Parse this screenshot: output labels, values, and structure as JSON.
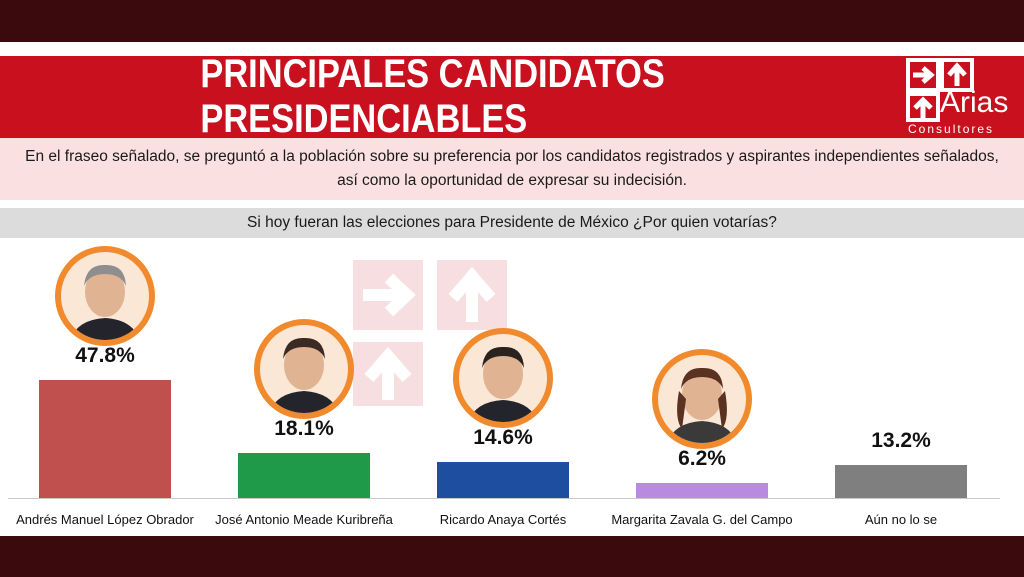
{
  "header": {
    "title": "PRINCIPALES CANDIDATOS PRESIDENCIABLES",
    "logo_word": "Arias",
    "logo_sub": "Consultores"
  },
  "description": "En el fraseo señalado, se preguntó a la población sobre su preferencia por los candidatos registrados y aspirantes independientes señalados, así como la oportunidad de expresar su indecisión.",
  "question": "Si hoy fueran las elecciones para Presidente de México ¿Por quien votarías?",
  "colors": {
    "brand_red": "#c8101e",
    "photo_ring": "#f08a2c"
  },
  "chart_data": {
    "type": "bar",
    "categories": [
      "Andrés Manuel López Obrador",
      "José Antonio Meade Kuribreña",
      "Ricardo Anaya Cortés",
      "Margarita Zavala G. del Campo",
      "Aún no lo se"
    ],
    "values": [
      47.8,
      18.1,
      14.6,
      6.2,
      13.2
    ],
    "value_labels": [
      "47.8%",
      "18.1%",
      "14.6%",
      "6.2%",
      "13.2%"
    ],
    "bar_colors": [
      "#c0504d",
      "#1e9a48",
      "#1d4ea0",
      "#b98be0",
      "#7f7f7f"
    ],
    "ylim": [
      0,
      47.8
    ],
    "title": "",
    "xlabel": "",
    "ylabel": ""
  }
}
